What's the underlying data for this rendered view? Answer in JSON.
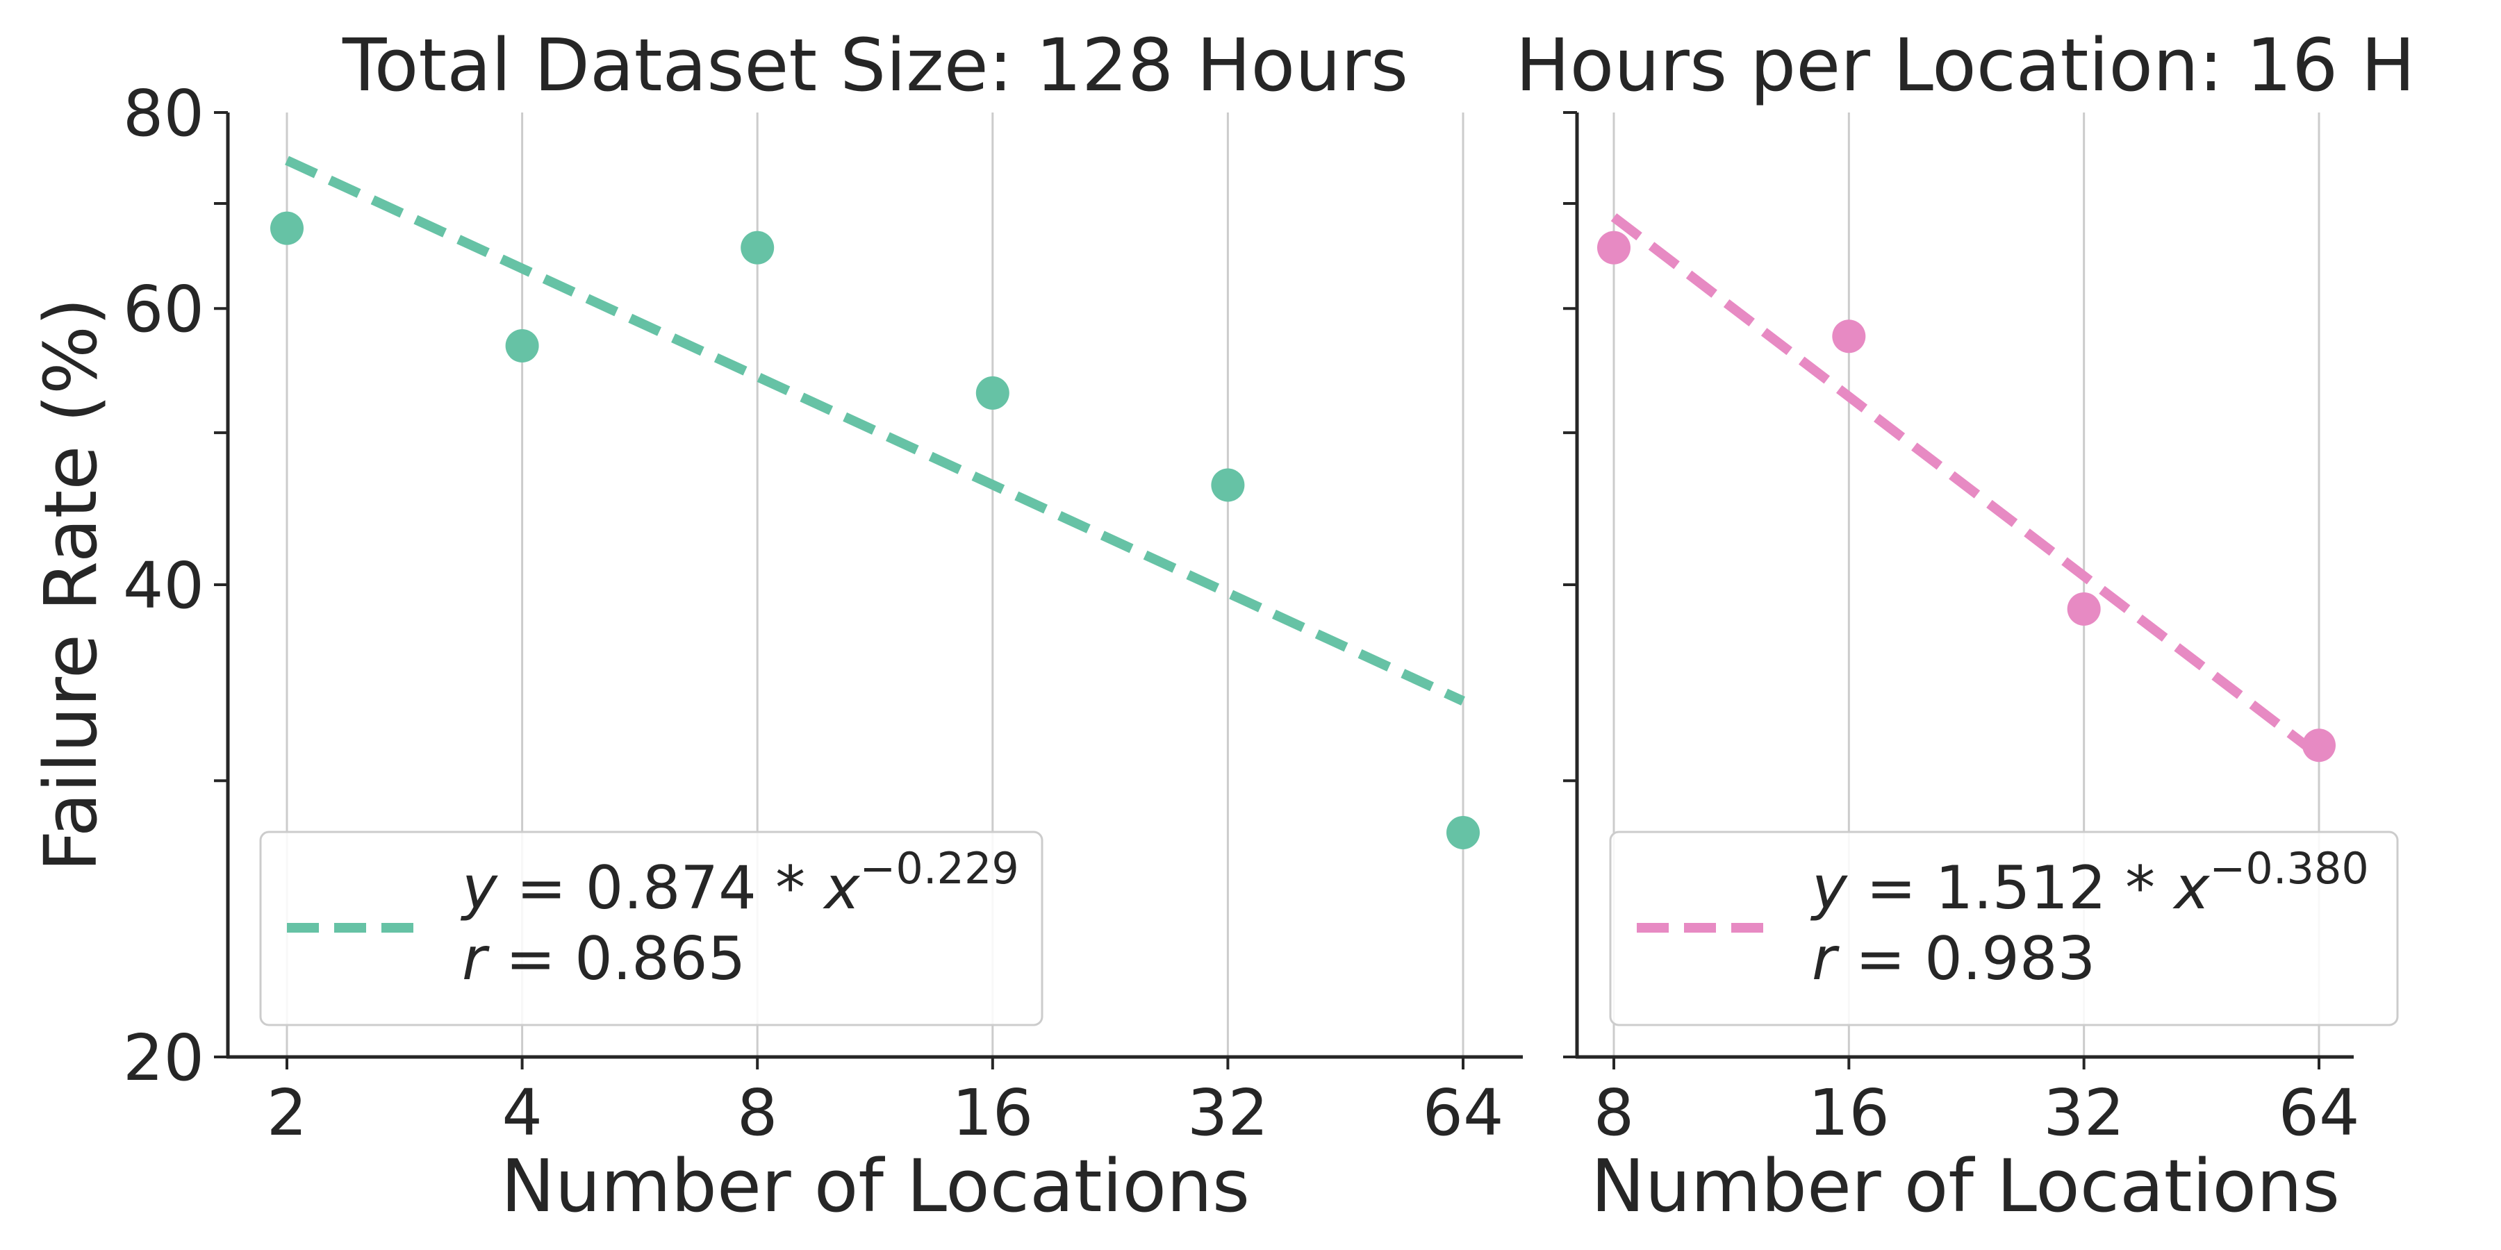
{
  "ylabel": "Failure Rate (%)",
  "chart_data": [
    {
      "type": "scatter",
      "title": "Total Dataset Size: 128 Hours",
      "xlabel": "Number of Locations",
      "xscale": "log2",
      "yscale": "log",
      "x_ticks": [
        2,
        4,
        8,
        16,
        32,
        64
      ],
      "x_tick_labels": [
        "2",
        "4",
        "8",
        "16",
        "32",
        "64"
      ],
      "y_ticks": [
        20,
        40,
        60,
        80
      ],
      "y_tick_labels": [
        "20",
        "40",
        "60",
        "80"
      ],
      "ylim": [
        20,
        80
      ],
      "x": [
        2,
        4,
        8,
        16,
        32,
        64
      ],
      "y": [
        67.5,
        56.8,
        65.6,
        53.0,
        46.3,
        27.8
      ],
      "fit": {
        "coef": 0.874,
        "exponent": -0.229,
        "x_range": [
          2,
          64
        ]
      },
      "color": "#66c2a5",
      "legend": {
        "placement": "lower-left",
        "equation": "y = 0.874 * x^-0.229",
        "r": "r = 0.865",
        "eq_parts": [
          "y",
          " = 0.874 * ",
          "x",
          "−0.229"
        ],
        "r_parts": [
          "r",
          " = 0.865"
        ]
      },
      "grid": "vertical"
    },
    {
      "type": "scatter",
      "title": "Hours per Location: 16 H",
      "xlabel": "Number of Locations",
      "xscale": "log2",
      "yscale": "log",
      "x_ticks": [
        8,
        16,
        32,
        64
      ],
      "x_tick_labels": [
        "8",
        "16",
        "32",
        "64"
      ],
      "ylim": [
        20,
        80
      ],
      "x": [
        8,
        16,
        32,
        64
      ],
      "y": [
        65.6,
        57.6,
        38.6,
        31.6
      ],
      "fit": {
        "coef": 1.512,
        "exponent": -0.38,
        "x_range": [
          8,
          64
        ]
      },
      "color": "#e78ac3",
      "legend": {
        "placement": "lower-left",
        "equation": "y = 1.512 * x^-0.380",
        "r": "r = 0.983",
        "eq_parts": [
          "y",
          " = 1.512 * ",
          "x",
          "−0.380"
        ],
        "r_parts": [
          "r",
          " = 0.983"
        ]
      },
      "grid": "vertical"
    }
  ]
}
